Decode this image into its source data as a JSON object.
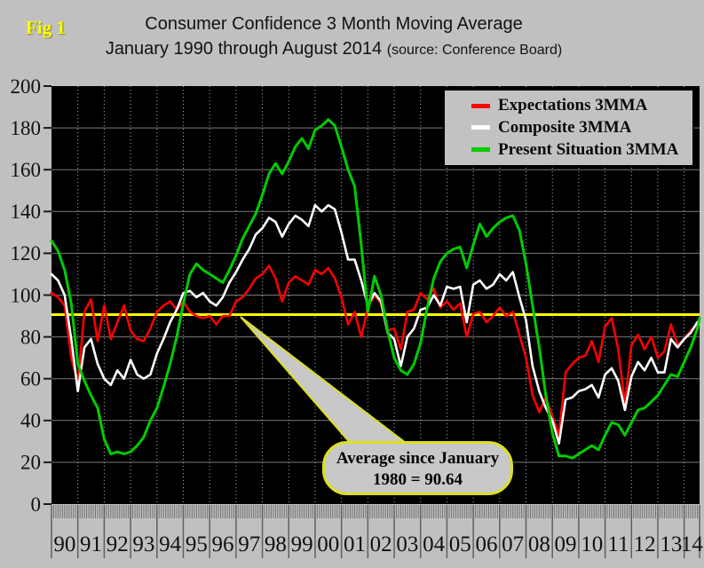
{
  "figure": {
    "label": "Fig 1",
    "title": "Consumer Confidence 3 Month Moving Average",
    "subtitle": "January 1990 through August 2014",
    "source_note": "(source: Conference Board)"
  },
  "annotation": {
    "line1": "Average since January",
    "line2": "1980 = 90.64"
  },
  "reference_line": {
    "label": "Average since January 1980",
    "value": 90.64,
    "color": "#ffff00"
  },
  "chart_data": {
    "type": "line",
    "title": "Consumer Confidence 3 Month Moving Average",
    "subtitle": "January 1990 through August 2014 (source: Conference Board)",
    "x_start": "1990-01",
    "x_end": "2014-08",
    "total_months": 295,
    "sample_step_months": 3,
    "x_tick_labels": [
      "90",
      "91",
      "92",
      "93",
      "94",
      "95",
      "96",
      "97",
      "98",
      "99",
      "00",
      "01",
      "02",
      "03",
      "04",
      "05",
      "06",
      "07",
      "08",
      "09",
      "10",
      "11",
      "12",
      "13",
      "14"
    ],
    "y_ticks": [
      0,
      20,
      40,
      60,
      80,
      100,
      120,
      140,
      160,
      180,
      200
    ],
    "y_range": [
      0,
      200
    ],
    "plot_bg": "#000000",
    "h_grid_color": "#7a7a7a",
    "v_grid_color": "#b0b0b0",
    "legend_position": "top-right",
    "series": [
      {
        "name": "Expectations 3MMA",
        "color": "#ff0000",
        "values": [
          101,
          99,
          95,
          70,
          58,
          92,
          98,
          78,
          95,
          79,
          87,
          95,
          83,
          79,
          78,
          84,
          92,
          95,
          97,
          93,
          97,
          92,
          90,
          89,
          90,
          86,
          90,
          90,
          97,
          99,
          103,
          108,
          110,
          114,
          108,
          97,
          106,
          109,
          107,
          105,
          112,
          110,
          113,
          108,
          99,
          86,
          92,
          80,
          94,
          100,
          96,
          83,
          84,
          74,
          92,
          93,
          101,
          98,
          103,
          94,
          97,
          93,
          96,
          80,
          91,
          92,
          87,
          90,
          94,
          90,
          92,
          81,
          70,
          52,
          44,
          51,
          42,
          33,
          63,
          67,
          70,
          71,
          78,
          68,
          85,
          89,
          74,
          48,
          76,
          81,
          74,
          80,
          70,
          73,
          86,
          76,
          79,
          83,
          86,
          88
        ]
      },
      {
        "name": "Composite 3MMA",
        "color": "#ffffff",
        "values": [
          110,
          107,
          100,
          79,
          54,
          75,
          79,
          67,
          60,
          57,
          64,
          60,
          69,
          62,
          60,
          62,
          72,
          79,
          87,
          93,
          101,
          102,
          99,
          101,
          97,
          95,
          99,
          106,
          111,
          117,
          122,
          129,
          132,
          137,
          135,
          128,
          134,
          138,
          136,
          133,
          143,
          140,
          143,
          141,
          130,
          117,
          117,
          107,
          95,
          101,
          97,
          82,
          79,
          66,
          80,
          84,
          93,
          94,
          100,
          95,
          104,
          103,
          104,
          87,
          105,
          107,
          103,
          105,
          110,
          107,
          111,
          99,
          88,
          66,
          54,
          46,
          40,
          29,
          50,
          51,
          54,
          55,
          57,
          51,
          62,
          65,
          59,
          45,
          61,
          68,
          64,
          70,
          63,
          63,
          79,
          75,
          79,
          82,
          87,
          88
        ]
      },
      {
        "name": "Present Situation 3MMA",
        "color": "#00cc00",
        "values": [
          126,
          121,
          112,
          96,
          67,
          59,
          52,
          46,
          31,
          24,
          25,
          24,
          25,
          28,
          32,
          40,
          46,
          56,
          67,
          80,
          96,
          110,
          115,
          112,
          110,
          108,
          106,
          112,
          119,
          127,
          133,
          139,
          148,
          158,
          163,
          158,
          164,
          171,
          175,
          170,
          179,
          181,
          184,
          181,
          171,
          160,
          152,
          124,
          92,
          109,
          100,
          83,
          70,
          64,
          62,
          67,
          77,
          94,
          108,
          116,
          120,
          122,
          123,
          113,
          124,
          134,
          128,
          132,
          135,
          137,
          138,
          131,
          115,
          95,
          75,
          52,
          34,
          23,
          23,
          22,
          24,
          26,
          28,
          26,
          33,
          39,
          38,
          33,
          39,
          45,
          46,
          49,
          52,
          57,
          62,
          61,
          68,
          75,
          84,
          89
        ]
      }
    ]
  }
}
